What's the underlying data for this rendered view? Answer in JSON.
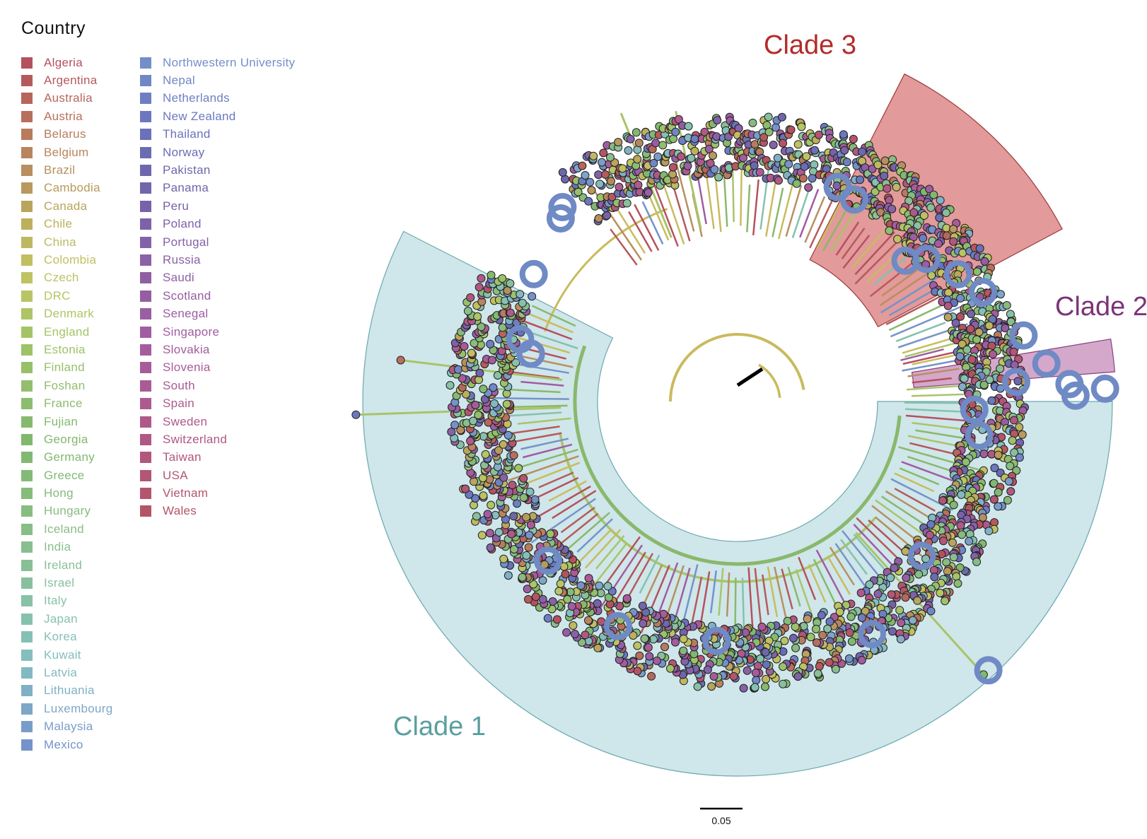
{
  "legend": {
    "title": "Country",
    "items": [
      {
        "label": "Algeria",
        "color": "#b5515f"
      },
      {
        "label": "Argentina",
        "color": "#b55a5c"
      },
      {
        "label": "Australia",
        "color": "#b7665c"
      },
      {
        "label": "Austria",
        "color": "#b86f5d"
      },
      {
        "label": "Belarus",
        "color": "#b87b5e"
      },
      {
        "label": "Belgium",
        "color": "#b8855e"
      },
      {
        "label": "Brazil",
        "color": "#b88f60"
      },
      {
        "label": "Cambodia",
        "color": "#b89a5e"
      },
      {
        "label": "Canada",
        "color": "#b9a55c"
      },
      {
        "label": "Chile",
        "color": "#bcb05c"
      },
      {
        "label": "China",
        "color": "#bfb863"
      },
      {
        "label": "Colombia",
        "color": "#c2bf60"
      },
      {
        "label": "Czech",
        "color": "#bfc262"
      },
      {
        "label": "DRC",
        "color": "#b8c465"
      },
      {
        "label": "Denmark",
        "color": "#aec466"
      },
      {
        "label": "England",
        "color": "#a5c467"
      },
      {
        "label": "Estonia",
        "color": "#9dc268"
      },
      {
        "label": "Finland",
        "color": "#96c06a"
      },
      {
        "label": "Foshan",
        "color": "#92be6d"
      },
      {
        "label": "France",
        "color": "#8cbc6f"
      },
      {
        "label": "Fujian",
        "color": "#85ba6e"
      },
      {
        "label": "Georgia",
        "color": "#80b86e"
      },
      {
        "label": "Germany",
        "color": "#82b872"
      },
      {
        "label": "Greece",
        "color": "#84ba77"
      },
      {
        "label": "Hong",
        "color": "#86bb7c"
      },
      {
        "label": "Hungary",
        "color": "#88bc80"
      },
      {
        "label": "Iceland",
        "color": "#88bd87"
      },
      {
        "label": "India",
        "color": "#89be8e"
      },
      {
        "label": "Ireland",
        "color": "#89bf96"
      },
      {
        "label": "Israel",
        "color": "#88c09e"
      },
      {
        "label": "Italy",
        "color": "#88c1a6"
      },
      {
        "label": "Japan",
        "color": "#86c1ad"
      },
      {
        "label": "Korea",
        "color": "#85c0b5"
      },
      {
        "label": "Kuwait",
        "color": "#84bebd"
      },
      {
        "label": "Latvia",
        "color": "#83b9c2"
      },
      {
        "label": "Lithuania",
        "color": "#80b0c6"
      },
      {
        "label": "Luxembourg",
        "color": "#7da6c8"
      },
      {
        "label": "Malaysia",
        "color": "#799dc9"
      },
      {
        "label": "Mexico",
        "color": "#7593c9"
      },
      {
        "label": "Northwestern University",
        "color": "#738fc8"
      },
      {
        "label": "Nepal",
        "color": "#7087c6"
      },
      {
        "label": "Netherlands",
        "color": "#6d7fc2"
      },
      {
        "label": "New Zealand",
        "color": "#6b78bf"
      },
      {
        "label": "Thailand",
        "color": "#6a71b9"
      },
      {
        "label": "Norway",
        "color": "#6a6cb3"
      },
      {
        "label": "Pakistan",
        "color": "#6d68ae"
      },
      {
        "label": "Panama",
        "color": "#7165ab"
      },
      {
        "label": "Peru",
        "color": "#7662aa"
      },
      {
        "label": "Poland",
        "color": "#7c62a9"
      },
      {
        "label": "Portugal",
        "color": "#8462a8"
      },
      {
        "label": "Russia",
        "color": "#8a61a6"
      },
      {
        "label": "Saudi",
        "color": "#8f5fa4"
      },
      {
        "label": "Scotland",
        "color": "#955ea3"
      },
      {
        "label": "Senegal",
        "color": "#9a5ea2"
      },
      {
        "label": "Singapore",
        "color": "#a05da1"
      },
      {
        "label": "Slovakia",
        "color": "#a45c9d"
      },
      {
        "label": "Slovenia",
        "color": "#a75c99"
      },
      {
        "label": "South",
        "color": "#aa5b95"
      },
      {
        "label": "Spain",
        "color": "#ad5a90"
      },
      {
        "label": "Sweden",
        "color": "#af598a"
      },
      {
        "label": "Switzerland",
        "color": "#b05884"
      },
      {
        "label": "Taiwan",
        "color": "#b1577d"
      },
      {
        "label": "USA",
        "color": "#b25676"
      },
      {
        "label": "Vietnam",
        "color": "#b3556e"
      },
      {
        "label": "Wales",
        "color": "#b45467"
      }
    ]
  },
  "clades": {
    "clade1": {
      "label": "Clade 1",
      "fill": "#cfe6ea",
      "stroke": "#6aa9ae",
      "text_color": "#5a9fa0"
    },
    "clade2": {
      "label": "Clade 2",
      "fill": "#d4a8cb",
      "stroke": "#8a3f7e",
      "text_color": "#7b3478"
    },
    "clade3": {
      "label": "Clade 3",
      "fill": "#e29a9a",
      "stroke": "#9c3a3a",
      "text_color": "#b52a2a"
    }
  },
  "scale_bar": {
    "label": "0.05"
  },
  "highlight_color": "#6f8ac4"
}
